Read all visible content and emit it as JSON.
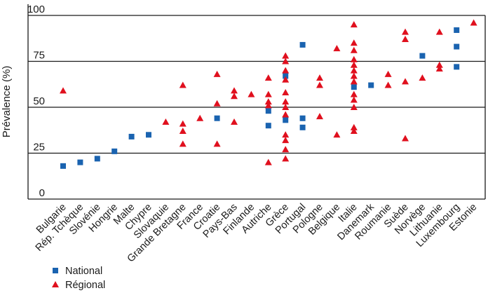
{
  "chart_data": {
    "type": "scatter",
    "ylabel": "Prévalence (%)",
    "ylim": [
      0,
      100
    ],
    "yticks": [
      0,
      25,
      50,
      75,
      100
    ],
    "grid": true,
    "legend_position": "bottom-left",
    "categories": [
      "Bulgarie",
      "Rép. Tchèque",
      "Slovénie",
      "Hongrie",
      "Malte",
      "Chypre",
      "Slovaquie",
      "Grande Bretagne",
      "France",
      "Croatie",
      "Pays-Bas",
      "Finlande",
      "Autriche",
      "Grèce",
      "Portugal",
      "Pologne",
      "Belgique",
      "Italie",
      "Danemark",
      "Roumanie",
      "Suède",
      "Norvège",
      "Lithuanie",
      "Luxembourg",
      "Estonie"
    ],
    "colors": {
      "National": "#1a63b0",
      "Régional": "#e0101e"
    },
    "series": [
      {
        "name": "National",
        "marker": "square",
        "points": [
          {
            "x": "Bulgarie",
            "y": 18
          },
          {
            "x": "Rép. Tchèque",
            "y": 20
          },
          {
            "x": "Slovénie",
            "y": 22
          },
          {
            "x": "Hongrie",
            "y": 26
          },
          {
            "x": "Malte",
            "y": 34
          },
          {
            "x": "Chypre",
            "y": 35
          },
          {
            "x": "Croatie",
            "y": 44
          },
          {
            "x": "Autriche",
            "y": 48
          },
          {
            "x": "Autriche",
            "y": 40
          },
          {
            "x": "Grèce",
            "y": 67
          },
          {
            "x": "Grèce",
            "y": 43
          },
          {
            "x": "Portugal",
            "y": 84
          },
          {
            "x": "Portugal",
            "y": 44
          },
          {
            "x": "Portugal",
            "y": 39
          },
          {
            "x": "Italie",
            "y": 61
          },
          {
            "x": "Danemark",
            "y": 62
          },
          {
            "x": "Norvège",
            "y": 78
          },
          {
            "x": "Luxembourg",
            "y": 92
          },
          {
            "x": "Luxembourg",
            "y": 83
          },
          {
            "x": "Luxembourg",
            "y": 72
          }
        ]
      },
      {
        "name": "Régional",
        "marker": "triangle",
        "points": [
          {
            "x": "Bulgarie",
            "y": 59
          },
          {
            "x": "Slovaquie",
            "y": 42
          },
          {
            "x": "Grande Bretagne",
            "y": 62
          },
          {
            "x": "Grande Bretagne",
            "y": 41
          },
          {
            "x": "Grande Bretagne",
            "y": 37
          },
          {
            "x": "Grande Bretagne",
            "y": 30
          },
          {
            "x": "France",
            "y": 44
          },
          {
            "x": "Croatie",
            "y": 68
          },
          {
            "x": "Croatie",
            "y": 52
          },
          {
            "x": "Croatie",
            "y": 30
          },
          {
            "x": "Pays-Bas",
            "y": 59
          },
          {
            "x": "Pays-Bas",
            "y": 56
          },
          {
            "x": "Pays-Bas",
            "y": 42
          },
          {
            "x": "Finlande",
            "y": 57
          },
          {
            "x": "Autriche",
            "y": 66
          },
          {
            "x": "Autriche",
            "y": 57
          },
          {
            "x": "Autriche",
            "y": 53
          },
          {
            "x": "Autriche",
            "y": 51
          },
          {
            "x": "Autriche",
            "y": 20
          },
          {
            "x": "Grèce",
            "y": 78
          },
          {
            "x": "Grèce",
            "y": 75
          },
          {
            "x": "Grèce",
            "y": 70
          },
          {
            "x": "Grèce",
            "y": 65
          },
          {
            "x": "Grèce",
            "y": 58
          },
          {
            "x": "Grèce",
            "y": 53
          },
          {
            "x": "Grèce",
            "y": 50
          },
          {
            "x": "Grèce",
            "y": 46
          },
          {
            "x": "Grèce",
            "y": 35
          },
          {
            "x": "Grèce",
            "y": 32
          },
          {
            "x": "Grèce",
            "y": 27
          },
          {
            "x": "Grèce",
            "y": 22
          },
          {
            "x": "Pologne",
            "y": 66
          },
          {
            "x": "Pologne",
            "y": 62
          },
          {
            "x": "Pologne",
            "y": 45
          },
          {
            "x": "Belgique",
            "y": 82
          },
          {
            "x": "Belgique",
            "y": 35
          },
          {
            "x": "Italie",
            "y": 95
          },
          {
            "x": "Italie",
            "y": 85
          },
          {
            "x": "Italie",
            "y": 81
          },
          {
            "x": "Italie",
            "y": 76
          },
          {
            "x": "Italie",
            "y": 73
          },
          {
            "x": "Italie",
            "y": 70
          },
          {
            "x": "Italie",
            "y": 67
          },
          {
            "x": "Italie",
            "y": 64
          },
          {
            "x": "Italie",
            "y": 57
          },
          {
            "x": "Italie",
            "y": 54
          },
          {
            "x": "Italie",
            "y": 50
          },
          {
            "x": "Italie",
            "y": 39
          },
          {
            "x": "Italie",
            "y": 37
          },
          {
            "x": "Roumanie",
            "y": 68
          },
          {
            "x": "Roumanie",
            "y": 62
          },
          {
            "x": "Suède",
            "y": 91
          },
          {
            "x": "Suède",
            "y": 87
          },
          {
            "x": "Suède",
            "y": 64
          },
          {
            "x": "Suède",
            "y": 33
          },
          {
            "x": "Norvège",
            "y": 66
          },
          {
            "x": "Lithuanie",
            "y": 91
          },
          {
            "x": "Lithuanie",
            "y": 73
          },
          {
            "x": "Lithuanie",
            "y": 71
          },
          {
            "x": "Estonie",
            "y": 96
          }
        ]
      }
    ]
  }
}
